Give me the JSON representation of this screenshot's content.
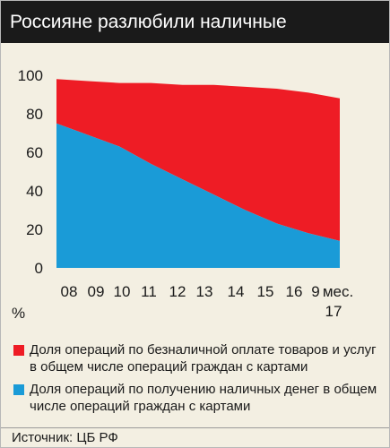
{
  "title": "Россияне разлюбили наличные",
  "chart_data": {
    "type": "area",
    "stacked": true,
    "categories": [
      "08",
      "09",
      "10",
      "11",
      "12",
      "13",
      "14",
      "15",
      "16",
      "9 мес. 17"
    ],
    "x_tick_main": [
      "08",
      "09",
      "10",
      "11",
      "12",
      "13",
      "14",
      "15",
      "16",
      "9",
      "мес."
    ],
    "x_tick_sub": "17",
    "ylabel": "%",
    "ylim": [
      0,
      100
    ],
    "yticks": [
      0,
      20,
      40,
      60,
      80,
      100
    ],
    "series": [
      {
        "name": "Доля операций по получению наличных денег в общем числе операций граждан с картами",
        "color": "#1a9bd7",
        "values": [
          75,
          69,
          63,
          54,
          46,
          38,
          30,
          23,
          18,
          14
        ]
      },
      {
        "name": "Доля операций по безналичной оплате товаров и услуг в общем числе операций граждан с картами",
        "color": "#ee1c25",
        "values": [
          23,
          28,
          33,
          42,
          49,
          57,
          64,
          70,
          73,
          74
        ]
      }
    ],
    "totals": [
      98,
      97,
      96,
      96,
      95,
      95,
      94,
      93,
      91,
      88
    ],
    "grid": false,
    "legend_position": "bottom"
  },
  "legend": [
    {
      "text": "Доля операций по безналичной оплате товаров и услуг в общем числе операций граждан с картами",
      "color": "#ee1c25"
    },
    {
      "text": "Доля операций по получению наличных денег в общем числе операций граждан с картами",
      "color": "#1a9bd7"
    }
  ],
  "source": "Источник: ЦБ РФ"
}
